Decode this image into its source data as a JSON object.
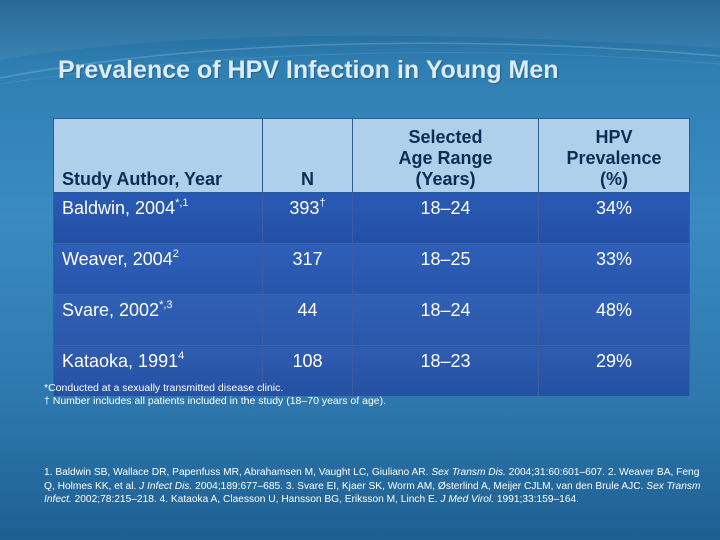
{
  "title": "Prevalence of HPV Infection in Young Men",
  "table": {
    "headers": [
      [
        "Study Author, Year"
      ],
      [
        "N"
      ],
      [
        "Selected",
        "Age Range",
        "(Years)"
      ],
      [
        "HPV",
        "Prevalence",
        "(%)"
      ]
    ],
    "rows": [
      {
        "author": "Baldwin, 2004",
        "author_sup": "*,1",
        "n": "393",
        "n_sup": "†",
        "age": "18–24",
        "prev": "34%"
      },
      {
        "author": "Weaver, 2004",
        "author_sup": "2",
        "n": "317",
        "n_sup": "",
        "age": "18–25",
        "prev": "33%"
      },
      {
        "author": "Svare, 2002",
        "author_sup": "*,3",
        "n": "44",
        "n_sup": "",
        "age": "18–24",
        "prev": "48%"
      },
      {
        "author": "Kataoka, 1991",
        "author_sup": "4",
        "n": "108",
        "n_sup": "",
        "age": "18–23",
        "prev": "29%"
      }
    ]
  },
  "footnotes": [
    "*Conducted at a sexually transmitted disease clinic.",
    "† Number includes all patients included in the study (18–70 years of age)."
  ],
  "references": {
    "r1_pre": "1. Baldwin SB, Wallace DR, Papenfuss MR, Abrahamsen M, Vaught LC, Giuliano AR. ",
    "r1_journal": "Sex Transm Dis.",
    "r1_post": " 2004;31:60:601–607.",
    "r2_pre": "2. Weaver BA, Feng Q, Holmes KK, et al. ",
    "r2_journal": "J Infect Dis.",
    "r2_post": " 2004;189:677–685. ",
    "r3_pre": "3. Svare EI, Kjaer SK, Worm AM, Østerlind A, Meijer CJLM, van den Brule AJC. ",
    "r3_journal": "Sex Transm Infect.",
    "r3_post": " 2002;78:215–218. ",
    "r4_pre": "4. Kataoka A, Claesson U, Hansson BG, Eriksson M, Linch E. ",
    "r4_journal": "J Med Virol.",
    "r4_post": " 1991;33:159–164."
  }
}
